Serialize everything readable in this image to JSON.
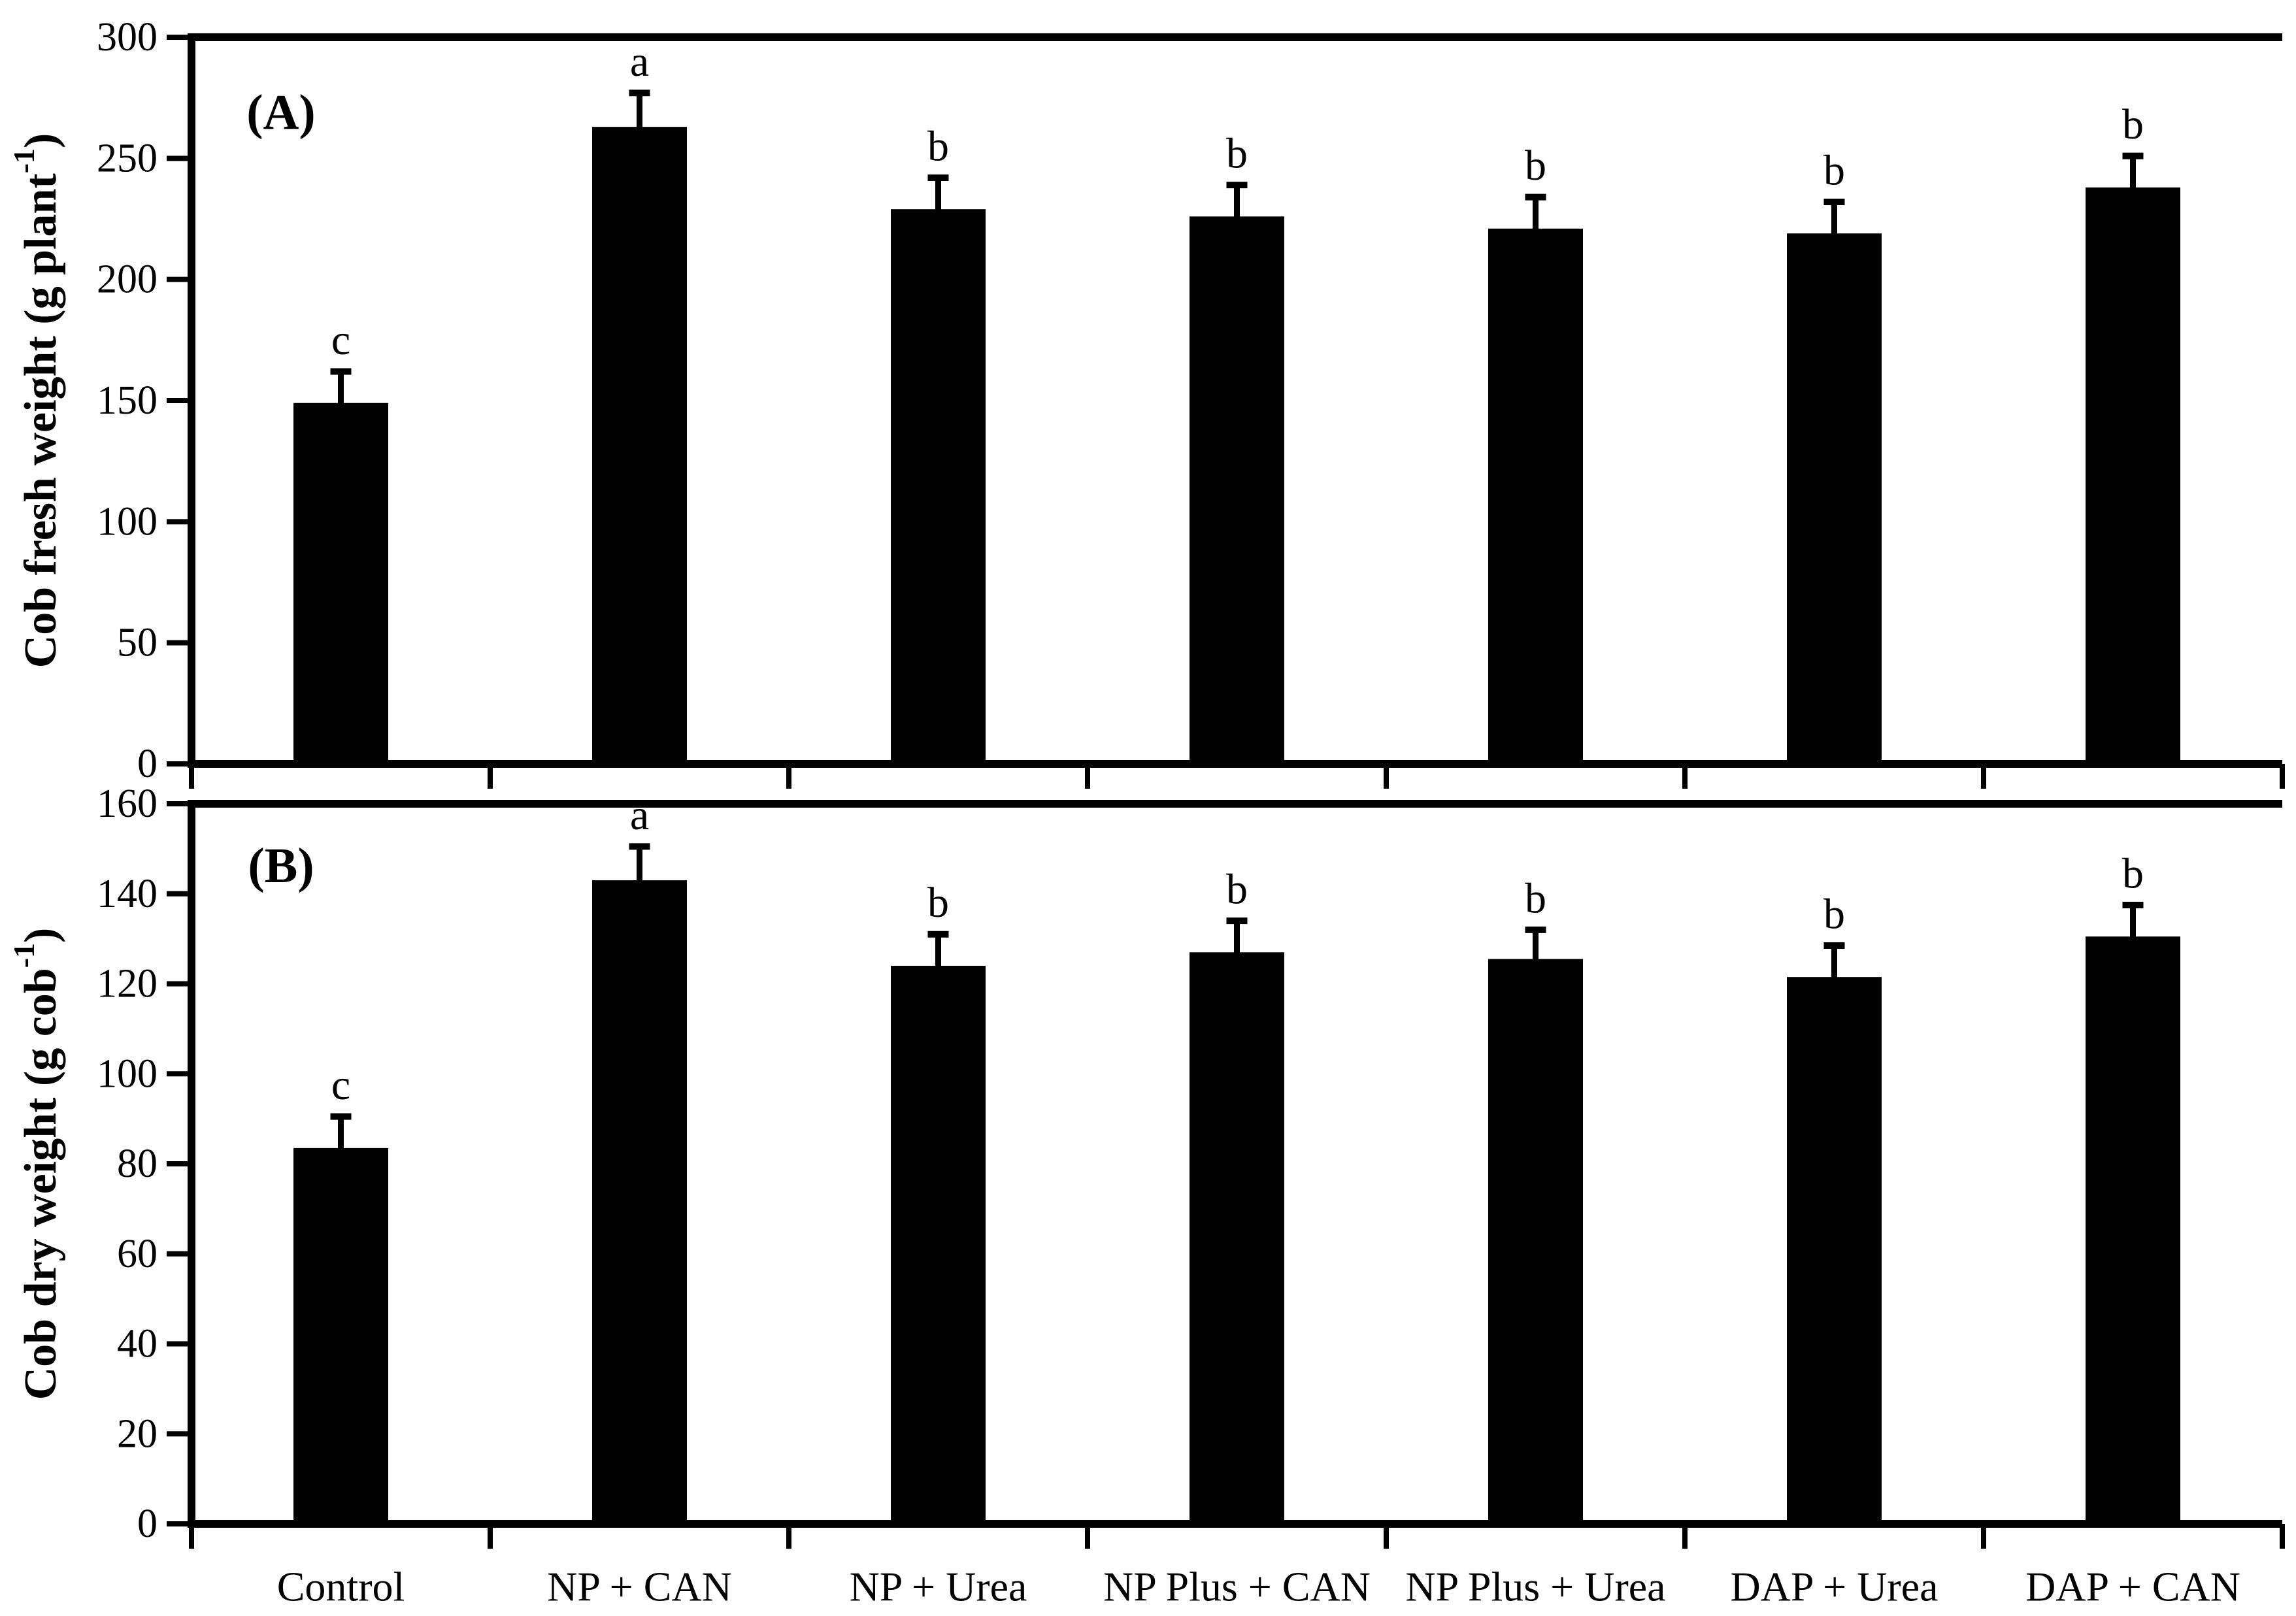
{
  "figure": {
    "background": "#ffffff",
    "ink": "#000000"
  },
  "chart_data": [
    {
      "type": "bar",
      "panel_label": "(A)",
      "title": "",
      "xlabel": "",
      "ylabel": "Cob fresh weight (g plant⁻¹)",
      "ylabel_parts": [
        "Cob  fresh weight (g plant",
        "-1",
        ")"
      ],
      "categories": [
        "Control",
        "NP + CAN",
        "NP + Urea",
        "NP Plus + CAN",
        "NP Plus + Urea",
        "DAP + Urea",
        "DAP + CAN"
      ],
      "values": [
        149,
        263,
        229,
        226,
        221,
        219,
        238
      ],
      "errors": [
        13,
        14,
        13,
        13,
        13,
        13,
        13
      ],
      "sig_letters": [
        "c",
        "a",
        "b",
        "b",
        "b",
        "b",
        "b"
      ],
      "ylim": [
        0,
        300
      ],
      "yticks": [
        0,
        50,
        100,
        150,
        200,
        250,
        300
      ],
      "show_x_labels": false,
      "grid": false,
      "legend": null,
      "bar_color": "#000000"
    },
    {
      "type": "bar",
      "panel_label": "(B)",
      "title": "",
      "xlabel": "",
      "ylabel": "Cob dry weight (g cob⁻¹)",
      "ylabel_parts": [
        "Cob dry weight (g cob",
        "-1",
        ")"
      ],
      "categories": [
        "Control",
        "NP + CAN",
        "NP + Urea",
        "NP Plus + CAN",
        "NP Plus + Urea",
        "DAP + Urea",
        "DAP + CAN"
      ],
      "values": [
        83.5,
        143,
        124,
        127,
        125.5,
        121.5,
        130.5
      ],
      "errors": [
        7,
        7.5,
        7,
        7,
        6.5,
        7,
        7
      ],
      "sig_letters": [
        "c",
        "a",
        "b",
        "b",
        "b",
        "b",
        "b"
      ],
      "ylim": [
        0,
        160
      ],
      "yticks": [
        0,
        20,
        40,
        60,
        80,
        100,
        120,
        140,
        160
      ],
      "show_x_labels": true,
      "grid": false,
      "legend": null,
      "bar_color": "#000000"
    }
  ]
}
